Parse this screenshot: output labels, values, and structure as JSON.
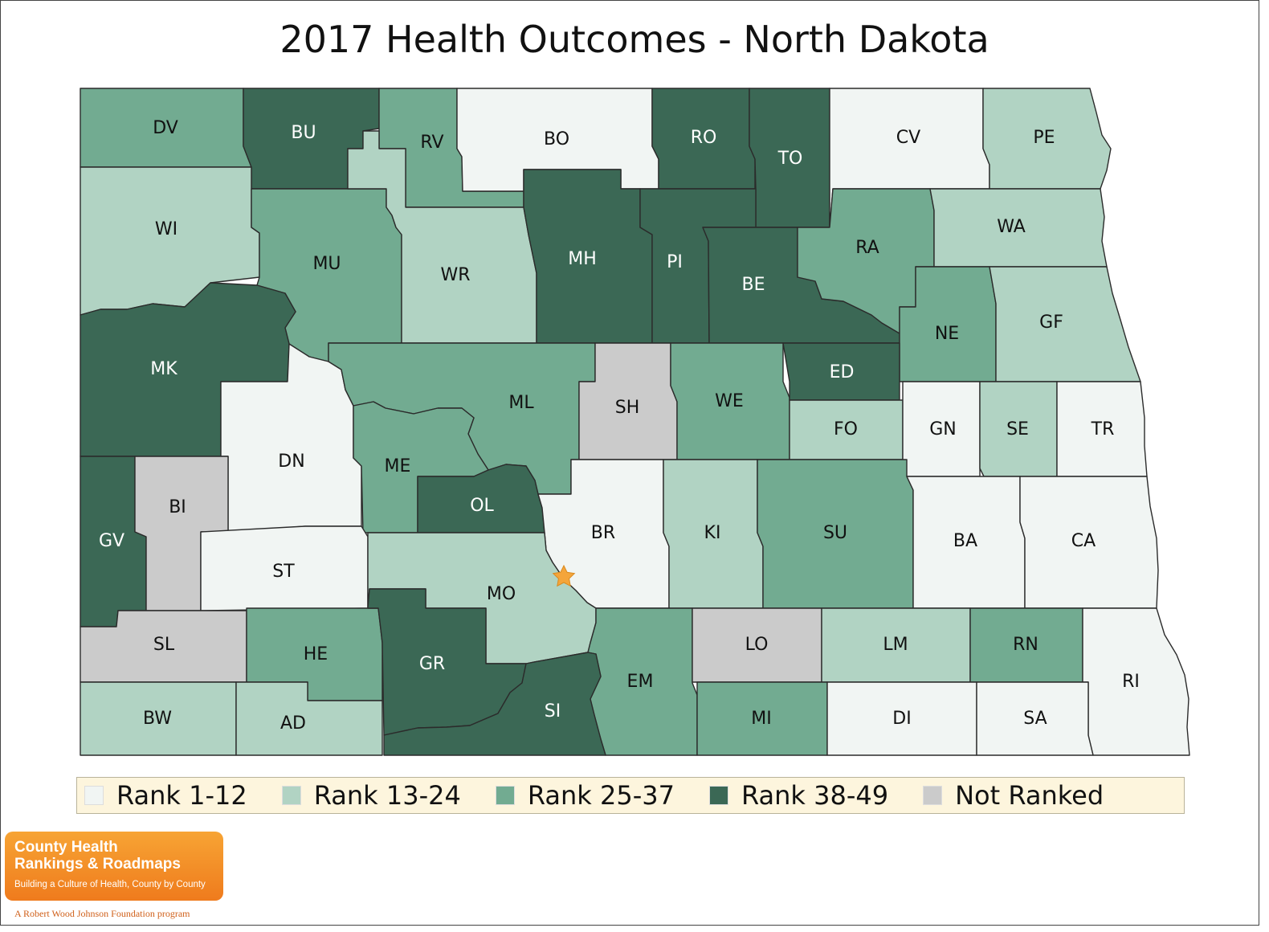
{
  "title": "2017 Health Outcomes - North Dakota",
  "colors": {
    "rank_1_12": "#f1f5f3",
    "rank_13_24": "#b1d3c3",
    "rank_25_37": "#72ab91",
    "rank_38_49": "#3b6855",
    "not_ranked": "#cbcbcb",
    "border": "#2b2b2b",
    "legend_background": "#fdf5dd",
    "star": "#f4a53b"
  },
  "legend": [
    {
      "label": "Rank 1-12",
      "category": "rank_1_12"
    },
    {
      "label": "Rank 13-24",
      "category": "rank_13_24"
    },
    {
      "label": "Rank 25-37",
      "category": "rank_25_37"
    },
    {
      "label": "Rank 38-49",
      "category": "rank_38_49"
    },
    {
      "label": "Not Ranked",
      "category": "not_ranked"
    }
  ],
  "counties": [
    {
      "abbr": "DV",
      "category": "rank_25_37"
    },
    {
      "abbr": "BU",
      "category": "rank_38_49"
    },
    {
      "abbr": "RV",
      "category": "rank_25_37"
    },
    {
      "abbr": "BO",
      "category": "rank_1_12"
    },
    {
      "abbr": "RO",
      "category": "rank_38_49"
    },
    {
      "abbr": "TO",
      "category": "rank_38_49"
    },
    {
      "abbr": "CV",
      "category": "rank_1_12"
    },
    {
      "abbr": "PE",
      "category": "rank_13_24"
    },
    {
      "abbr": "WI",
      "category": "rank_13_24"
    },
    {
      "abbr": "MU",
      "category": "rank_25_37"
    },
    {
      "abbr": "WR",
      "category": "rank_13_24"
    },
    {
      "abbr": "MH",
      "category": "rank_38_49"
    },
    {
      "abbr": "PI",
      "category": "rank_38_49"
    },
    {
      "abbr": "BE",
      "category": "rank_38_49"
    },
    {
      "abbr": "RA",
      "category": "rank_25_37"
    },
    {
      "abbr": "WA",
      "category": "rank_13_24"
    },
    {
      "abbr": "NE",
      "category": "rank_25_37"
    },
    {
      "abbr": "GF",
      "category": "rank_13_24"
    },
    {
      "abbr": "MK",
      "category": "rank_38_49"
    },
    {
      "abbr": "DN",
      "category": "rank_1_12"
    },
    {
      "abbr": "ML",
      "category": "rank_25_37"
    },
    {
      "abbr": "SH",
      "category": "not_ranked"
    },
    {
      "abbr": "WE",
      "category": "rank_25_37"
    },
    {
      "abbr": "ED",
      "category": "rank_38_49"
    },
    {
      "abbr": "FO",
      "category": "rank_13_24"
    },
    {
      "abbr": "GN",
      "category": "rank_1_12"
    },
    {
      "abbr": "SE",
      "category": "rank_13_24"
    },
    {
      "abbr": "TR",
      "category": "rank_1_12"
    },
    {
      "abbr": "ME",
      "category": "rank_25_37"
    },
    {
      "abbr": "OL",
      "category": "rank_38_49"
    },
    {
      "abbr": "GV",
      "category": "rank_38_49"
    },
    {
      "abbr": "BI",
      "category": "not_ranked"
    },
    {
      "abbr": "ST",
      "category": "rank_1_12"
    },
    {
      "abbr": "BR",
      "category": "rank_1_12"
    },
    {
      "abbr": "KI",
      "category": "rank_13_24"
    },
    {
      "abbr": "SU",
      "category": "rank_25_37"
    },
    {
      "abbr": "BA",
      "category": "rank_1_12"
    },
    {
      "abbr": "CA",
      "category": "rank_1_12"
    },
    {
      "abbr": "MO",
      "category": "rank_13_24"
    },
    {
      "abbr": "SL",
      "category": "not_ranked"
    },
    {
      "abbr": "HE",
      "category": "rank_25_37"
    },
    {
      "abbr": "GR",
      "category": "rank_38_49"
    },
    {
      "abbr": "EM",
      "category": "rank_25_37"
    },
    {
      "abbr": "LO",
      "category": "not_ranked"
    },
    {
      "abbr": "LM",
      "category": "rank_13_24"
    },
    {
      "abbr": "RN",
      "category": "rank_25_37"
    },
    {
      "abbr": "RI",
      "category": "rank_1_12"
    },
    {
      "abbr": "BW",
      "category": "rank_13_24"
    },
    {
      "abbr": "AD",
      "category": "rank_13_24"
    },
    {
      "abbr": "SI",
      "category": "rank_38_49"
    },
    {
      "abbr": "MI",
      "category": "rank_25_37"
    },
    {
      "abbr": "DI",
      "category": "rank_1_12"
    },
    {
      "abbr": "SA",
      "category": "rank_1_12"
    }
  ],
  "capital_marker": "star",
  "logo": {
    "line1": "County Health",
    "line2": "Rankings & Roadmaps",
    "tagline": "Building a Culture of Health, County by County",
    "footer": "A Robert Wood Johnson Foundation program"
  }
}
